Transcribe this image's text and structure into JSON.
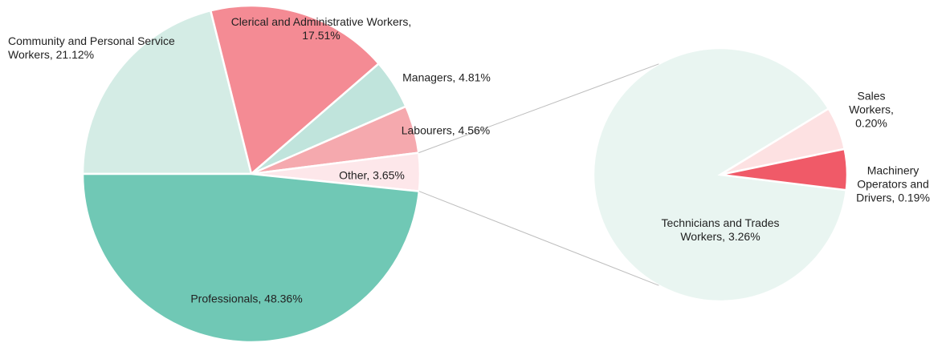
{
  "chart_data": {
    "type": "pie",
    "labels": [
      "Community and Personal Service Workers, 21.12%",
      "Clerical and Administrative Workers, 17.51%",
      "Managers, 4.81%",
      "Labourers, 4.56%",
      "Other, 3.65%",
      "Professionals, 48.36%"
    ],
    "values": [
      21.12,
      17.51,
      4.81,
      4.56,
      3.65,
      48.36
    ],
    "colors": [
      "#d4ece5",
      "#f48b94",
      "#c0e4dc",
      "#f5a9ae",
      "#fde7ea",
      "#70c8b5"
    ],
    "secondary": {
      "labels": [
        "Technicians and Trades Workers, 3.26%",
        "Sales Workers, 0.20%",
        "Machinery Operators and Drivers, 0.19%"
      ],
      "values": [
        3.26,
        0.2,
        0.19
      ],
      "colors": [
        "#e9f5f1",
        "#fde1e2",
        "#f05a68"
      ]
    }
  }
}
